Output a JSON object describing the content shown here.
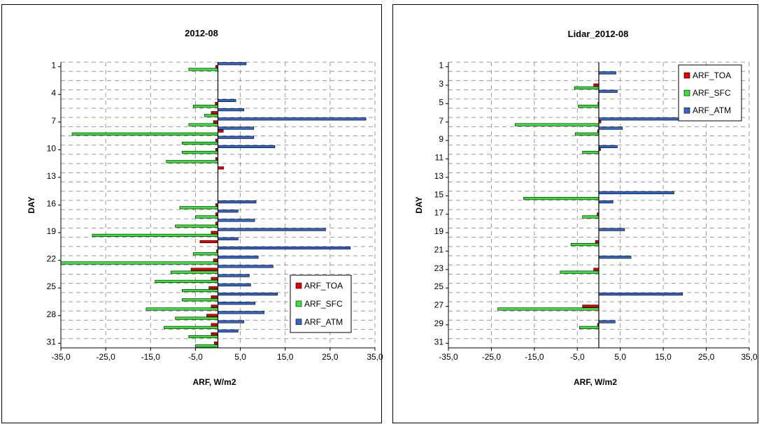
{
  "colors": {
    "toa": "#e60000",
    "sfc": "#33e633",
    "atm": "#3366cc",
    "grid": "#9a9a9a",
    "axis": "#000000"
  },
  "chart_data": [
    {
      "type": "bar",
      "orientation": "horizontal",
      "title": "2012-08",
      "xlabel": "ARF, W/m2",
      "ylabel": "DAY",
      "xlim": [
        -35,
        35
      ],
      "x_ticks": [
        "-35,0",
        "-25,0",
        "-15,0",
        "-5,0",
        "5,0",
        "15,0",
        "25,0",
        "35,0"
      ],
      "days": [
        1,
        31
      ],
      "day_tick_labels": [
        "1",
        "4",
        "7",
        "10",
        "13",
        "16",
        "19",
        "22",
        "25",
        "28",
        "31"
      ],
      "grid": true,
      "legend_position": "bottom-right",
      "series": [
        {
          "name": "ARF_TOA",
          "color_key": "toa",
          "points": [
            [
              1,
              -0.5
            ],
            [
              5,
              -0.6
            ],
            [
              6,
              -1.5
            ],
            [
              7,
              -1
            ],
            [
              8,
              1.2
            ],
            [
              9,
              -0.5
            ],
            [
              10,
              -0.5
            ],
            [
              11,
              -0.5
            ],
            [
              12,
              1.3
            ],
            [
              16,
              -0.5
            ],
            [
              17,
              -0.5
            ],
            [
              18,
              -0.5
            ],
            [
              19,
              -1.5
            ],
            [
              20,
              -4
            ],
            [
              21,
              -0.3
            ],
            [
              22,
              -1
            ],
            [
              23,
              -6
            ],
            [
              24,
              -1.5
            ],
            [
              25,
              -2
            ],
            [
              26,
              -1.5
            ],
            [
              27,
              -1.5
            ],
            [
              28,
              -2.5
            ],
            [
              29,
              -1.5
            ],
            [
              30,
              -1.5
            ],
            [
              31,
              -0.8
            ]
          ]
        },
        {
          "name": "ARF_SFC",
          "color_key": "sfc",
          "points": [
            [
              1,
              -6.5
            ],
            [
              5,
              -5.5
            ],
            [
              6,
              -3
            ],
            [
              7,
              -6.5
            ],
            [
              8,
              -32.5
            ],
            [
              9,
              -8
            ],
            [
              10,
              -8
            ],
            [
              11,
              -11.5
            ],
            [
              16,
              -8.5
            ],
            [
              17,
              -5
            ],
            [
              18,
              -9.5
            ],
            [
              19,
              -28
            ],
            [
              21,
              -5.5
            ],
            [
              22,
              -35
            ],
            [
              23,
              -10.5
            ],
            [
              24,
              -14
            ],
            [
              25,
              -8
            ],
            [
              26,
              -8
            ],
            [
              27,
              -16
            ],
            [
              28,
              -9.5
            ],
            [
              29,
              -12
            ],
            [
              30,
              -6.5
            ],
            [
              31,
              -5
            ]
          ]
        },
        {
          "name": "ARF_ATM",
          "color_key": "atm",
          "points": [
            [
              1,
              6.3
            ],
            [
              5,
              4
            ],
            [
              6,
              5.8
            ],
            [
              7,
              33
            ],
            [
              8,
              8
            ],
            [
              9,
              8
            ],
            [
              10,
              12.7
            ],
            [
              16,
              8.5
            ],
            [
              17,
              4.5
            ],
            [
              18,
              8.2
            ],
            [
              19,
              24
            ],
            [
              20,
              4.5
            ],
            [
              21,
              29.5
            ],
            [
              22,
              9
            ],
            [
              23,
              12.3
            ],
            [
              24,
              7
            ],
            [
              25,
              7.3
            ],
            [
              26,
              13.3
            ],
            [
              27,
              8.3
            ],
            [
              28,
              10.3
            ],
            [
              29,
              5.8
            ],
            [
              30,
              4.5
            ]
          ]
        }
      ]
    },
    {
      "type": "bar",
      "orientation": "horizontal",
      "title": "Lidar_2012-08",
      "xlabel": "ARF, W/m2",
      "ylabel": "DAY",
      "xlim": [
        -35,
        35
      ],
      "x_ticks": [
        "-35,0",
        "-25,0",
        "-15,0",
        "-5,0",
        "5,0",
        "15,0",
        "25,0",
        "35,0"
      ],
      "days": [
        1,
        31
      ],
      "day_tick_labels": [
        "1",
        "3",
        "5",
        "7",
        "9",
        "11",
        "13",
        "15",
        "17",
        "19",
        "21",
        "23",
        "25",
        "27",
        "29",
        "31"
      ],
      "grid": true,
      "legend_position": "top-right",
      "series": [
        {
          "name": "ARF_TOA",
          "color_key": "toa",
          "points": [
            [
              3,
              -1.2
            ],
            [
              5,
              -0.2
            ],
            [
              7,
              0.5
            ],
            [
              8,
              -0.3
            ],
            [
              10,
              0.4
            ],
            [
              17,
              -0.4
            ],
            [
              20,
              -0.8
            ],
            [
              23,
              -1.2
            ],
            [
              27,
              -3.8
            ],
            [
              29,
              -0.3
            ]
          ]
        },
        {
          "name": "ARF_SFC",
          "color_key": "sfc",
          "points": [
            [
              3,
              -5.7
            ],
            [
              5,
              -4.8
            ],
            [
              7,
              -19.5
            ],
            [
              8,
              -5.5
            ],
            [
              10,
              -3.8
            ],
            [
              15,
              -17.5
            ],
            [
              17,
              -3.8
            ],
            [
              20,
              -6.5
            ],
            [
              23,
              -9
            ],
            [
              27,
              -23.5
            ],
            [
              29,
              -4.5
            ]
          ]
        },
        {
          "name": "ARF_ATM",
          "color_key": "atm",
          "points": [
            [
              2,
              4
            ],
            [
              4,
              4.3
            ],
            [
              7,
              20
            ],
            [
              8,
              5.5
            ],
            [
              10,
              4.3
            ],
            [
              15,
              17.5
            ],
            [
              16,
              3.3
            ],
            [
              19,
              6
            ],
            [
              22,
              7.5
            ],
            [
              26,
              19.5
            ],
            [
              29,
              3.8
            ]
          ]
        }
      ]
    }
  ]
}
